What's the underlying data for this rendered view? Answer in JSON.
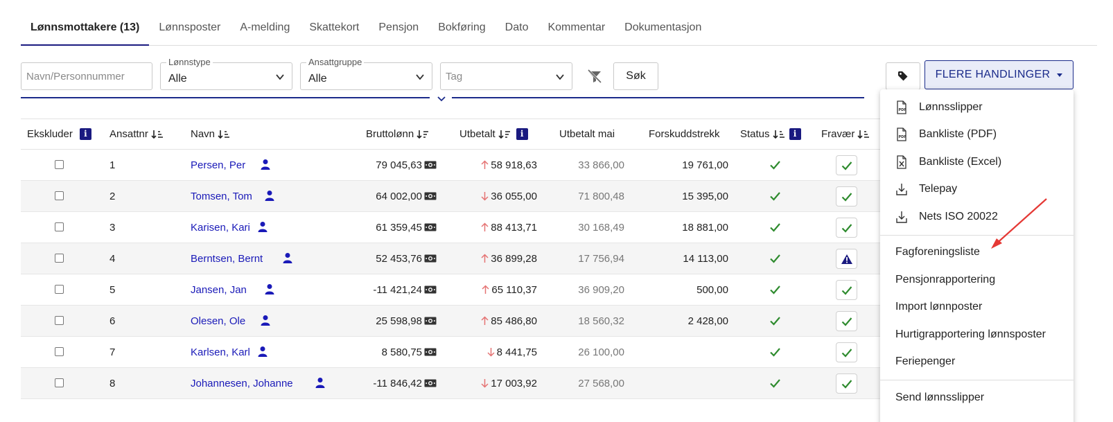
{
  "tabs": [
    {
      "label": "Lønnsmottakere (13)",
      "active": true
    },
    {
      "label": "Lønnsposter"
    },
    {
      "label": "A-melding"
    },
    {
      "label": "Skattekort"
    },
    {
      "label": "Pensjon"
    },
    {
      "label": "Bokføring"
    },
    {
      "label": "Dato"
    },
    {
      "label": "Kommentar"
    },
    {
      "label": "Dokumentasjon"
    }
  ],
  "filters": {
    "search_placeholder": "Navn/Personnummer",
    "lonnstype_label": "Lønnstype",
    "lonnstype_value": "Alle",
    "ansattgruppe_label": "Ansattgruppe",
    "ansattgruppe_value": "Alle",
    "tag_placeholder": "Tag",
    "search_button": "Søk",
    "actions_button": "FLERE HANDLINGER"
  },
  "table": {
    "headers": {
      "ekskluder": "Ekskluder",
      "ansattnr": "Ansattnr",
      "navn": "Navn",
      "bruttolonn": "Bruttolønn",
      "utbetalt": "Utbetalt",
      "utbetalt_mai": "Utbetalt mai",
      "forskuddstrekk": "Forskuddstrekk",
      "status": "Status",
      "fravaer": "Fravær"
    },
    "info_badge": "i",
    "rows": [
      {
        "nr": "1",
        "name": "Persen, Per",
        "brutto": "79 045,63",
        "dir": "up",
        "utbetalt": "58 918,63",
        "mai": "33 866,00",
        "trekk": "19 761,00",
        "fravaer": "check"
      },
      {
        "nr": "2",
        "name": "Tomsen, Tom",
        "brutto": "64 002,00",
        "dir": "down",
        "utbetalt": "36 055,00",
        "mai": "71 800,48",
        "trekk": "15 395,00",
        "fravaer": "check"
      },
      {
        "nr": "3",
        "name": "Karisen, Kari",
        "brutto": "61 359,45",
        "dir": "up",
        "utbetalt": "88 413,71",
        "mai": "30 168,49",
        "trekk": "18 881,00",
        "fravaer": "check"
      },
      {
        "nr": "4",
        "name": "Berntsen, Bernt",
        "brutto": "52 453,76",
        "dir": "up",
        "utbetalt": "36 899,28",
        "mai": "17 756,94",
        "trekk": "14 113,00",
        "fravaer": "warning"
      },
      {
        "nr": "5",
        "name": "Jansen, Jan",
        "brutto": "-11 421,24",
        "dir": "up",
        "utbetalt": "65 110,37",
        "mai": "36 909,20",
        "trekk": "500,00",
        "fravaer": "check"
      },
      {
        "nr": "6",
        "name": "Olesen, Ole",
        "brutto": "25 598,98",
        "dir": "up",
        "utbetalt": "85 486,80",
        "mai": "18 560,32",
        "trekk": "2 428,00",
        "fravaer": "check"
      },
      {
        "nr": "7",
        "name": "Karlsen, Karl",
        "brutto": "8 580,75",
        "dir": "down",
        "utbetalt": "8 441,75",
        "mai": "26 100,00",
        "trekk": "",
        "fravaer": "check"
      },
      {
        "nr": "8",
        "name": "Johannesen, Johanne",
        "brutto": "-11 846,42",
        "dir": "down",
        "utbetalt": "17 003,92",
        "mai": "27 568,00",
        "trekk": "",
        "fravaer": "check"
      }
    ]
  },
  "menu": {
    "items": [
      {
        "label": "Lønnsslipper",
        "icon": "pdf-icon"
      },
      {
        "label": "Bankliste (PDF)",
        "icon": "pdf-icon"
      },
      {
        "label": "Bankliste (Excel)",
        "icon": "excel-icon"
      },
      {
        "label": "Telepay",
        "icon": "download-icon"
      },
      {
        "label": "Nets ISO 20022",
        "icon": "download-icon"
      },
      {
        "label": "Fagforeningsliste"
      },
      {
        "label": "Pensjonrapportering"
      },
      {
        "label": "Import lønnposter"
      },
      {
        "label": "Hurtigrapportering lønnsposter"
      },
      {
        "label": "Feriepenger"
      },
      {
        "label": "Send lønnsslipper"
      }
    ]
  },
  "colors": {
    "accent": "#1a1a80",
    "link": "#1a1ab8",
    "check": "#2e8b2e",
    "up_arrow": "#e57373",
    "annotation": "#e53935"
  }
}
